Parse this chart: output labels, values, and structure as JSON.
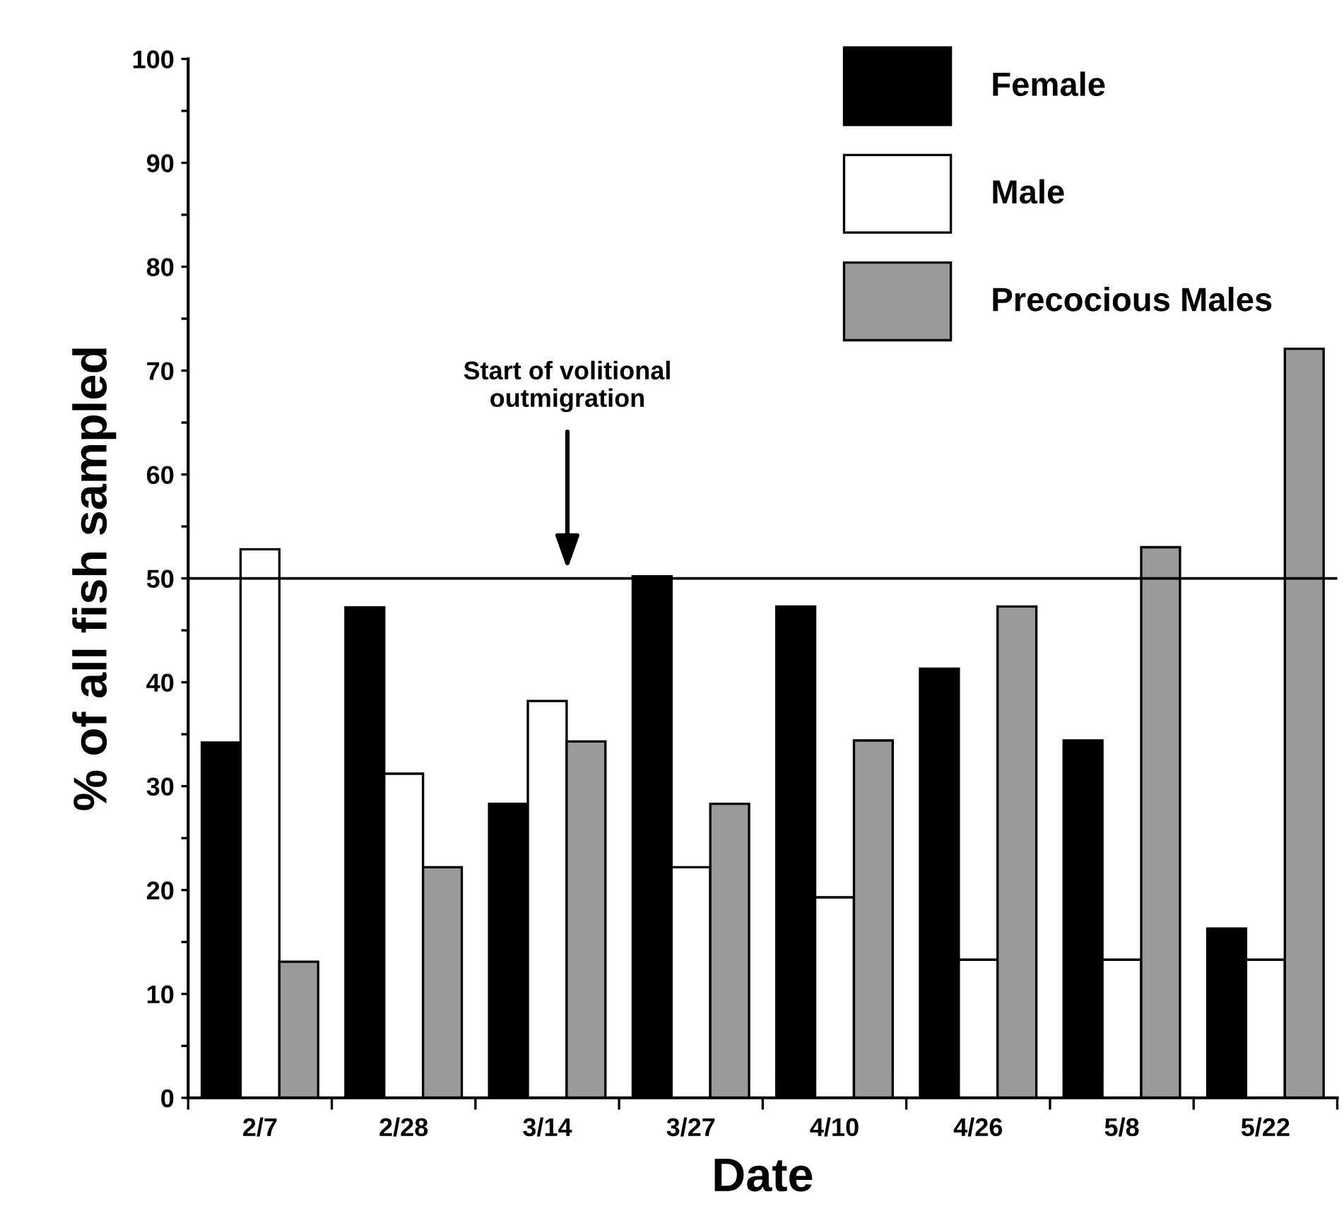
{
  "chart_data": {
    "type": "bar",
    "xlabel": "Date",
    "ylabel": "% of all fish sampled",
    "categories": [
      "2/7",
      "2/28",
      "3/14",
      "3/27",
      "4/10",
      "4/26",
      "5/8",
      "5/22"
    ],
    "series": [
      {
        "name": "Female",
        "color": "#000000",
        "values": [
          34.2,
          47.2,
          28.3,
          50.2,
          47.3,
          41.3,
          34.4,
          16.3
        ]
      },
      {
        "name": "Male",
        "color": "#ffffff",
        "values": [
          52.8,
          31.2,
          38.2,
          22.2,
          19.3,
          13.3,
          13.3,
          13.3
        ]
      },
      {
        "name": "Precocious Males",
        "color": "#9a9a9a",
        "values": [
          13.1,
          22.2,
          34.3,
          28.3,
          34.4,
          47.3,
          53.0,
          72.1
        ]
      }
    ],
    "ylim": [
      0,
      100
    ],
    "yticks": [
      0,
      {
        "value": 5,
        "label": null
      },
      10,
      {
        "value": 15,
        "label": null
      },
      20,
      {
        "value": 25,
        "label": null
      },
      30,
      {
        "value": 35,
        "label": null
      },
      40,
      {
        "value": 45,
        "label": null
      },
      50,
      {
        "value": 55,
        "label": null
      },
      60,
      {
        "value": 65,
        "label": null
      },
      70,
      {
        "value": 75,
        "label": null
      },
      80,
      {
        "value": 85,
        "label": null
      },
      90,
      {
        "value": 95,
        "label": null
      },
      100
    ],
    "ref_lines": [
      {
        "axis": "y",
        "value": 50,
        "color": "#000000"
      }
    ],
    "annotations": [
      "Start of volitional\noutmigration"
    ],
    "legend": "top right",
    "grid": false
  }
}
